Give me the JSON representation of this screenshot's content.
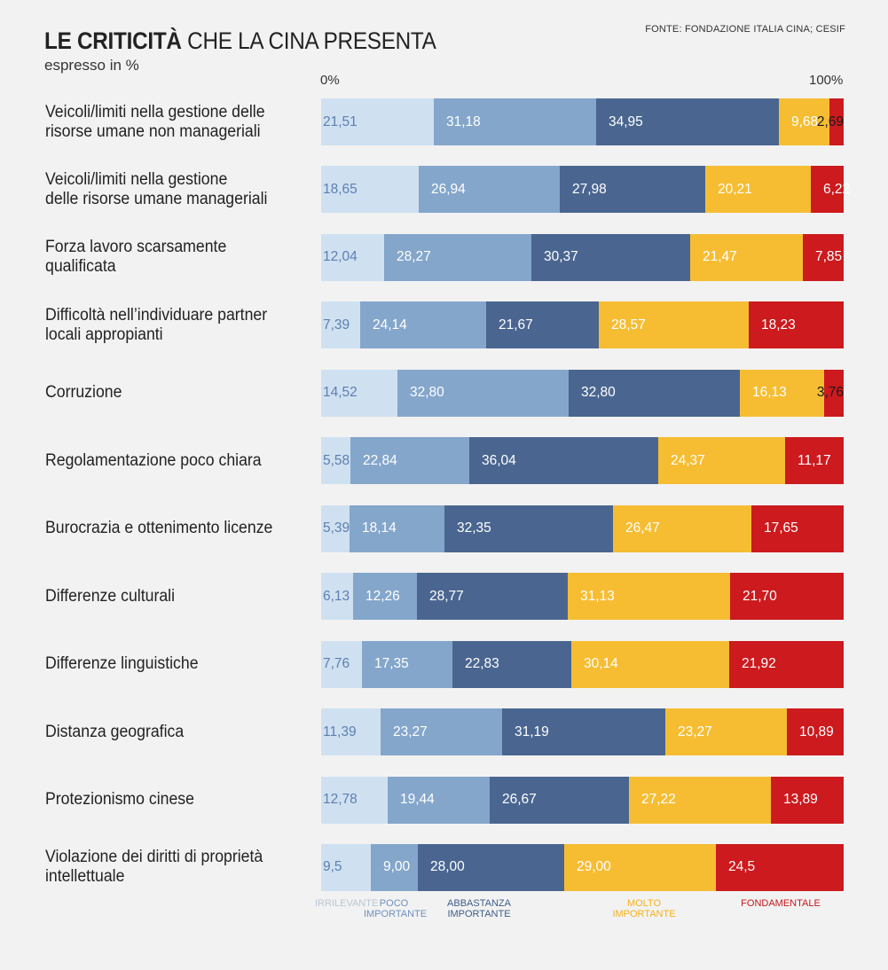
{
  "title_bold": "LE CRITICITÀ",
  "title_rest": "CHE LA CINA PRESENTA",
  "subtitle": "espresso in %",
  "source": "FONTE: FONDAZIONE ITALIA CINA; CESIF",
  "axis": {
    "start": "0%",
    "end": "100%"
  },
  "colors": {
    "irrilevante": "#cfe1f1",
    "poco_importante": "#84a6cb",
    "abbastanza_importante": "#4a6690",
    "molto_importante": "#f6bd33",
    "fondamentale": "#cc1a1e"
  },
  "chart_data": {
    "type": "bar",
    "orientation": "horizontal",
    "stacked": true,
    "title": "LE CRITICITÀ CHE LA CINA PRESENTA",
    "subtitle": "espresso in %",
    "xlim": [
      0,
      100
    ],
    "categories": [
      "Veicoli/limiti nella gestione delle\nrisorse umane non manageriali",
      "Veicoli/limiti nella gestione\ndelle risorse umane manageriali",
      "Forza lavoro scarsamente\nqualificata",
      "Difficoltà nell’individuare partner\nlocali appropianti",
      "Corruzione",
      "Regolamentazione poco chiara",
      "Burocrazia e ottenimento licenze",
      "Differenze culturali",
      "Differenze linguistiche",
      "Distanza geografica",
      "Protezionismo cinese",
      "Violazione dei diritti di proprietà\nintellettuale"
    ],
    "series": [
      {
        "name": "IRRILEVANTE",
        "legend": "IRRILEVANTE",
        "color": "#cfe1f1",
        "text_color": "#5d7fb0",
        "values": [
          21.51,
          18.65,
          12.04,
          7.39,
          14.52,
          5.58,
          5.39,
          6.13,
          7.76,
          11.39,
          12.78,
          9.5
        ],
        "labels": [
          "21,51",
          "18,65",
          "12,04",
          "7,39",
          "14,52",
          "5,58",
          "5,39",
          "6,13",
          "7,76",
          "11,39",
          "12,78",
          "9,5"
        ]
      },
      {
        "name": "POCO IMPORTANTE",
        "legend": "POCO\nIMPORTANTE",
        "color": "#84a6cb",
        "text_color": "#ffffff",
        "values": [
          31.18,
          26.94,
          28.27,
          24.14,
          32.8,
          22.84,
          18.14,
          12.26,
          17.35,
          23.27,
          19.44,
          9.0
        ],
        "labels": [
          "31,18",
          "26,94",
          "28,27",
          "24,14",
          "32,80",
          "22,84",
          "18,14",
          "12,26",
          "17,35",
          "23,27",
          "19,44",
          "9,00"
        ]
      },
      {
        "name": "ABBASTANZA IMPORTANTE",
        "legend": "ABBASTANZA IMPORTANTE",
        "color": "#4a6690",
        "text_color": "#ffffff",
        "values": [
          34.95,
          27.98,
          30.37,
          21.67,
          32.8,
          36.04,
          32.35,
          28.77,
          22.83,
          31.19,
          26.67,
          28.0
        ],
        "labels": [
          "34,95",
          "27,98",
          "30,37",
          "21,67",
          "32,80",
          "36,04",
          "32,35",
          "28,77",
          "22,83",
          "31,19",
          "26,67",
          "28,00"
        ]
      },
      {
        "name": "MOLTO IMPORTANTE",
        "legend": "MOLTO IMPORTANTE",
        "color": "#f6bd33",
        "text_color": "#ffffff",
        "values": [
          9.68,
          20.21,
          21.47,
          28.57,
          16.13,
          24.37,
          26.47,
          31.13,
          30.14,
          23.27,
          27.22,
          29.0
        ],
        "labels": [
          "9,68",
          "20,21",
          "21,47",
          "28,57",
          "16,13",
          "24,37",
          "26,47",
          "31,13",
          "30,14",
          "23,27",
          "27,22",
          "29,00"
        ]
      },
      {
        "name": "FONDAMENTALE",
        "legend": "FONDAMENTALE",
        "color": "#cc1a1e",
        "text_color": "#ffffff",
        "values": [
          2.69,
          6.22,
          7.85,
          18.23,
          3.76,
          11.17,
          17.65,
          21.7,
          21.92,
          10.89,
          13.89,
          24.5
        ],
        "labels": [
          "2,69",
          "6,22",
          "7,85",
          "18,23",
          "3,76",
          "11,17",
          "17,65",
          "21,70",
          "21,92",
          "10,89",
          "13,89",
          "24,5"
        ]
      }
    ]
  }
}
